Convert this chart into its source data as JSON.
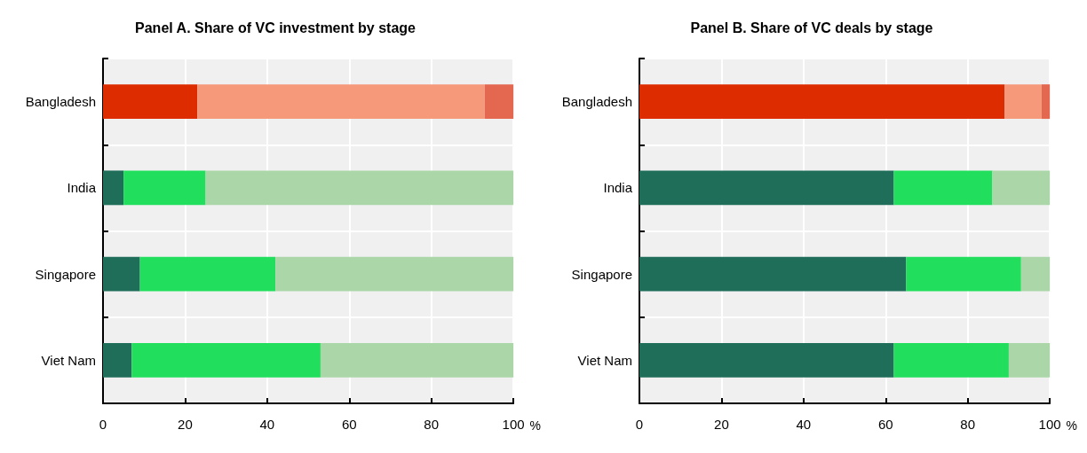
{
  "chart_data": [
    {
      "type": "bar",
      "title": "Panel A. Share of VC investment by stage",
      "orientation": "horizontal",
      "stacked": true,
      "xlabel": "%",
      "categories": [
        "Bangladesh",
        "India",
        "Singapore",
        "Viet Nam"
      ],
      "xlim": [
        0,
        100
      ],
      "xticks": [
        0,
        20,
        40,
        60,
        80,
        100
      ],
      "grid": true,
      "series": [
        {
          "values": [
            23,
            5,
            9,
            7
          ],
          "colors": [
            "#dd2d00",
            "#1f6e5a",
            "#1f6e5a",
            "#1f6e5a"
          ]
        },
        {
          "values": [
            70,
            20,
            33,
            46
          ],
          "colors": [
            "#f6997b",
            "#21df5c",
            "#21df5c",
            "#21df5c"
          ]
        },
        {
          "values": [
            7,
            75,
            58,
            47
          ],
          "colors": [
            "#e4674f",
            "#abd7a8",
            "#abd7a8",
            "#abd7a8"
          ]
        }
      ]
    },
    {
      "type": "bar",
      "title": "Panel B. Share of VC deals by stage",
      "orientation": "horizontal",
      "stacked": true,
      "xlabel": "%",
      "categories": [
        "Bangladesh",
        "India",
        "Singapore",
        "Viet Nam"
      ],
      "xlim": [
        0,
        100
      ],
      "xticks": [
        0,
        20,
        40,
        60,
        80,
        100
      ],
      "grid": true,
      "series": [
        {
          "values": [
            89,
            62,
            65,
            62
          ],
          "colors": [
            "#dd2d00",
            "#1f6e5a",
            "#1f6e5a",
            "#1f6e5a"
          ]
        },
        {
          "values": [
            9,
            24,
            28,
            28
          ],
          "colors": [
            "#f6997b",
            "#21df5c",
            "#21df5c",
            "#21df5c"
          ]
        },
        {
          "values": [
            2,
            14,
            7,
            10
          ],
          "colors": [
            "#e4674f",
            "#abd7a8",
            "#abd7a8",
            "#abd7a8"
          ]
        }
      ]
    }
  ]
}
